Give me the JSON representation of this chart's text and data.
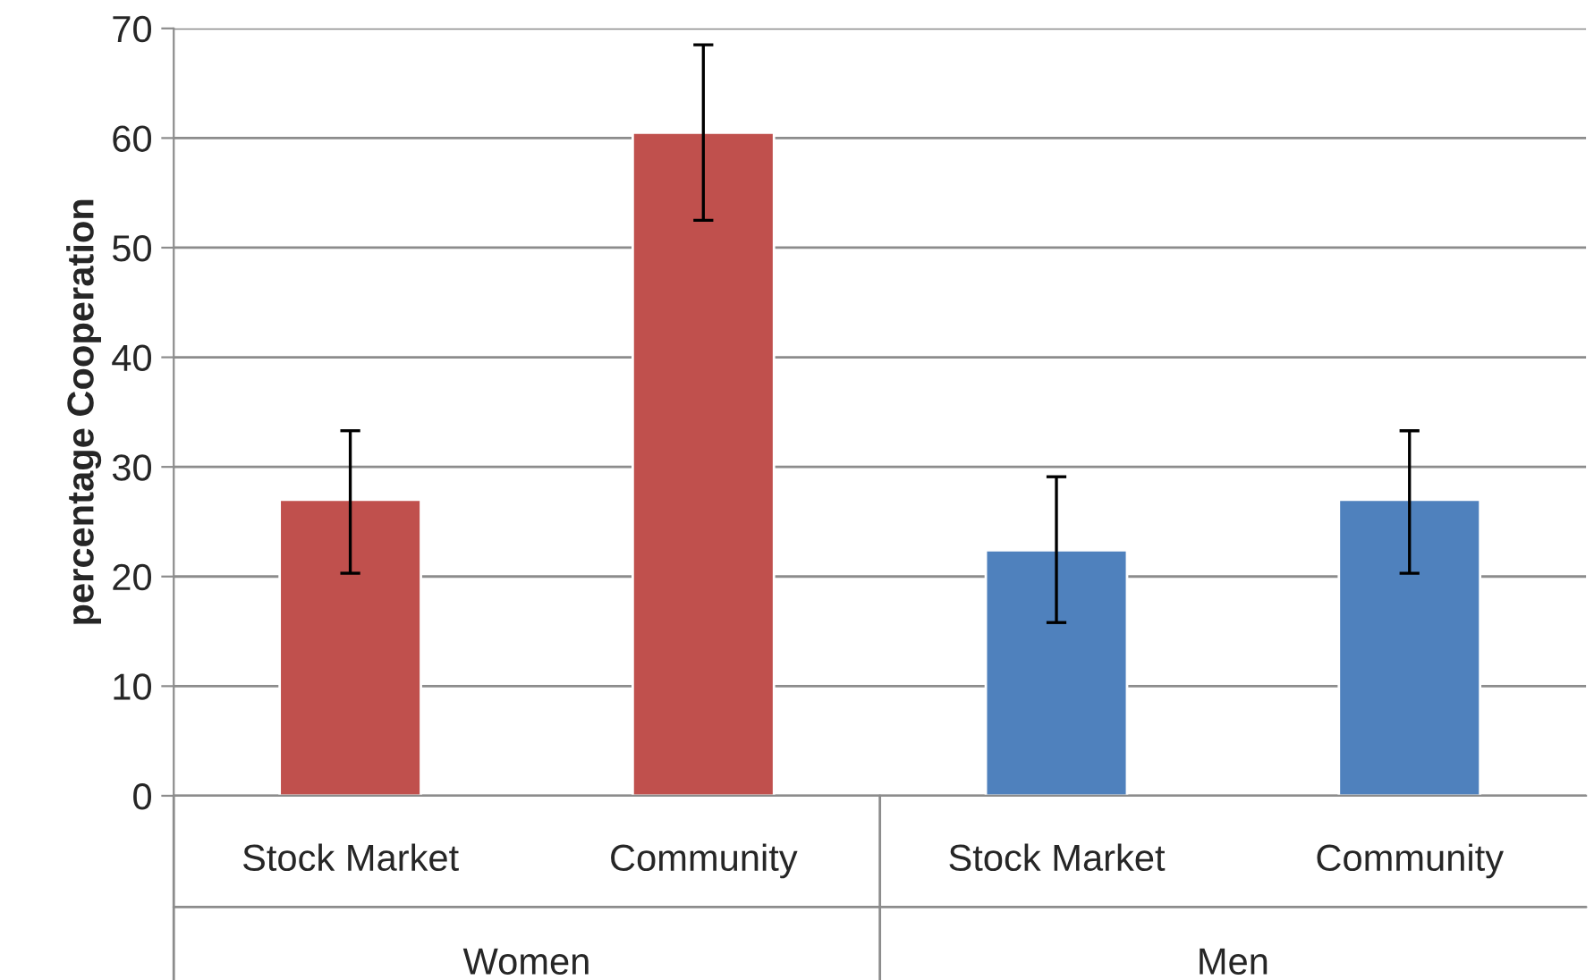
{
  "chart_data": {
    "type": "bar",
    "ylabel": "percentage Cooperation",
    "categories": [
      "Stock Market",
      "Community",
      "Stock Market",
      "Community"
    ],
    "values": [
      27,
      60.5,
      22.4,
      27
    ],
    "colors": [
      "#c0504d",
      "#c0504d",
      "#4f81bd",
      "#4f81bd"
    ],
    "errors": [
      [
        20.3,
        33.3
      ],
      [
        52.5,
        68.5
      ],
      [
        15.8,
        29.1
      ],
      [
        20.3,
        33.3
      ]
    ],
    "annotations": [
      "Women",
      "Men"
    ],
    "ylim": [
      0,
      70
    ],
    "yticks": [
      0,
      10,
      20,
      30,
      40,
      50,
      60,
      70
    ],
    "grid": "y",
    "legend": false
  }
}
